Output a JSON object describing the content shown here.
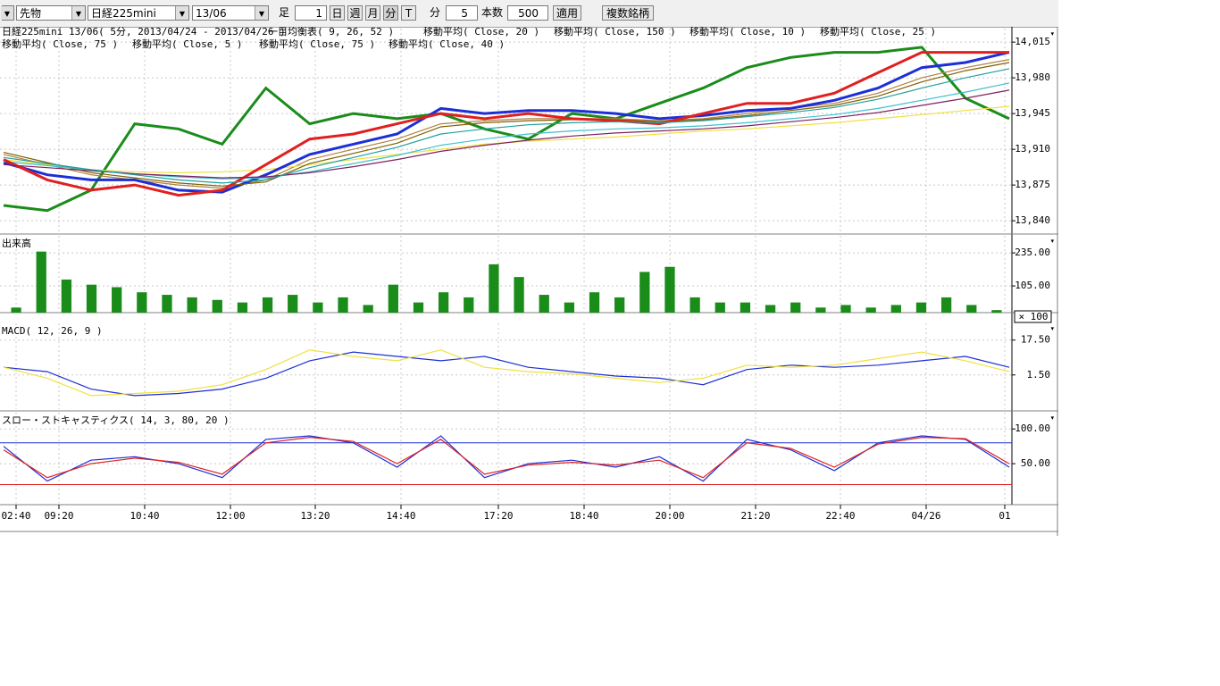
{
  "toolbar": {
    "market": "先物",
    "symbol": "日経225mini",
    "contract": "13/06",
    "bar_label": "足",
    "bar_count": "1",
    "day": "日",
    "week": "週",
    "month": "月",
    "minute": "分",
    "tick": "T",
    "minute_label": "分",
    "interval": "5",
    "count_label": "本数",
    "count": "500",
    "apply": "適用",
    "multi": "複数銘柄"
  },
  "x_axis": {
    "labels": [
      "02:40",
      "09:20",
      "10:40",
      "12:00",
      "13:20",
      "14:40",
      "17:20",
      "18:40",
      "20:00",
      "21:20",
      "22:40",
      "04/26",
      "01"
    ]
  },
  "chart_data": [
    {
      "type": "line",
      "title": "日経225mini 13/06( 5分, 2013/04/24 - 2013/04/26 )",
      "grid": true,
      "ylim": [
        13827,
        14030
      ],
      "yticks": [
        {
          "value": 13840,
          "label": "13,840"
        },
        {
          "value": 13875,
          "label": "13,875"
        },
        {
          "value": 13910,
          "label": "13,910"
        },
        {
          "value": 13945,
          "label": "13,945"
        },
        {
          "value": 13980,
          "label": "13,980"
        },
        {
          "value": 14015,
          "label": "14,015"
        }
      ],
      "series": [
        {
          "name": "一目均衡表( 9, 26, 52 )",
          "color": "#1a8c1a",
          "values": [
            13855,
            13850,
            13870,
            13935,
            13930,
            13915,
            13970,
            13935,
            13945,
            13940,
            13945,
            13930,
            13920,
            13945,
            13940,
            13955,
            13970,
            13990,
            14000,
            14005,
            14005,
            14010,
            13960,
            13940
          ]
        },
        {
          "name": "移動平均( Close, 20 )",
          "color": "#b08040",
          "values": [
            13905,
            13895,
            13885,
            13880,
            13875,
            13872,
            13880,
            13900,
            13910,
            13920,
            13935,
            13938,
            13940,
            13940,
            13940,
            13938,
            13940,
            13945,
            13950,
            13955,
            13965,
            13980,
            13990,
            13998
          ]
        },
        {
          "name": "移動平均( Close, 150 )",
          "color": "#f0e040",
          "values": [
            13900,
            13895,
            13890,
            13888,
            13887,
            13888,
            13890,
            13895,
            13900,
            13905,
            13910,
            13915,
            13918,
            13920,
            13922,
            13925,
            13928,
            13930,
            13933,
            13936,
            13940,
            13944,
            13948,
            13952
          ]
        },
        {
          "name": "移動平均( Close, 10 )",
          "color": "#1c2fd6",
          "values": [
            13897,
            13885,
            13880,
            13880,
            13870,
            13868,
            13885,
            13905,
            13915,
            13925,
            13950,
            13945,
            13948,
            13948,
            13945,
            13940,
            13943,
            13948,
            13950,
            13958,
            13970,
            13990,
            13995,
            14005
          ]
        },
        {
          "name": "移動平均( Close, 25 )",
          "color": "#806000",
          "values": [
            13907,
            13897,
            13887,
            13882,
            13877,
            13874,
            13878,
            13896,
            13906,
            13916,
            13932,
            13936,
            13938,
            13939,
            13939,
            13937,
            13939,
            13943,
            13948,
            13953,
            13962,
            13976,
            13987,
            13995
          ]
        },
        {
          "name": "移動平均( Close, 75 )",
          "color": "#40c0d0",
          "values": [
            13898,
            13894,
            13890,
            13886,
            13883,
            13881,
            13882,
            13888,
            13896,
            13904,
            13914,
            13920,
            13925,
            13928,
            13930,
            13931,
            13933,
            13936,
            13940,
            13944,
            13950,
            13958,
            13966,
            13975
          ]
        },
        {
          "name": "移動平均( Close, 5 )",
          "color": "#e02020",
          "values": [
            13900,
            13880,
            13870,
            13875,
            13865,
            13870,
            13895,
            13920,
            13925,
            13935,
            13945,
            13940,
            13945,
            13940,
            13938,
            13935,
            13945,
            13955,
            13955,
            13965,
            13985,
            14005,
            14005,
            14005
          ]
        },
        {
          "name": "移動平均( Close, 75 )",
          "color": "#802060",
          "values": [
            13895,
            13892,
            13889,
            13886,
            13884,
            13882,
            13883,
            13887,
            13893,
            13900,
            13908,
            13914,
            13919,
            13923,
            13926,
            13928,
            13930,
            13933,
            13937,
            13941,
            13946,
            13953,
            13960,
            13968
          ]
        },
        {
          "name": "移動平均( Close, 40 )",
          "color": "#20a0a0",
          "values": [
            13902,
            13896,
            13890,
            13885,
            13880,
            13877,
            13880,
            13892,
            13902,
            13912,
            13925,
            13930,
            13934,
            13936,
            13937,
            13936,
            13938,
            13942,
            13946,
            13951,
            13959,
            13970,
            13980,
            13989
          ]
        }
      ]
    },
    {
      "type": "bar",
      "title": "出来高",
      "color": "#1a8c1a",
      "annotation": "× 100",
      "ylim": [
        0,
        309
      ],
      "yticks": [
        {
          "value": 105,
          "label": "105.00"
        },
        {
          "value": 235,
          "label": "235.00"
        }
      ],
      "values": [
        20,
        240,
        130,
        110,
        100,
        80,
        70,
        60,
        50,
        40,
        60,
        70,
        40,
        60,
        30,
        110,
        40,
        80,
        60,
        190,
        140,
        70,
        40,
        80,
        60,
        160,
        180,
        60,
        40,
        40,
        30,
        40,
        20,
        30,
        20,
        30,
        40,
        60,
        30,
        10
      ]
    },
    {
      "type": "line",
      "title": "MACD( 12, 26, 9 )",
      "ylim": [
        -15,
        26
      ],
      "yticks": [
        {
          "value": 1.5,
          "label": "1.50"
        },
        {
          "value": 17.5,
          "label": "17.50"
        }
      ],
      "series": [
        {
          "color": "#1c2fd6",
          "values": [
            5,
            3,
            -5,
            -8,
            -7,
            -5,
            0,
            8,
            12,
            10,
            8,
            10,
            5,
            3,
            1,
            0,
            -3,
            4,
            6,
            5,
            6,
            8,
            10,
            5
          ]
        },
        {
          "color": "#f0e040",
          "values": [
            5,
            0,
            -8,
            -7,
            -6,
            -3,
            4,
            13,
            10,
            8,
            13,
            5,
            3,
            2,
            0,
            -2,
            0,
            6,
            5,
            6,
            9,
            12,
            8,
            3
          ]
        }
      ]
    },
    {
      "type": "line",
      "title": "スロー・ストキャスティクス( 14, 3, 80, 20 )",
      "ylim": [
        -9,
        126
      ],
      "yticks": [
        {
          "value": 50,
          "label": "50.00"
        },
        {
          "value": 100,
          "label": "100.00"
        }
      ],
      "reference_lines": [
        {
          "value": 80,
          "color": "#1c2fd6"
        },
        {
          "value": 20,
          "color": "#e02020"
        }
      ],
      "series": [
        {
          "color": "#1c2fd6",
          "values": [
            75,
            25,
            55,
            60,
            50,
            30,
            85,
            90,
            80,
            45,
            90,
            30,
            50,
            55,
            45,
            60,
            25,
            85,
            70,
            40,
            80,
            90,
            85,
            45
          ]
        },
        {
          "color": "#e02020",
          "values": [
            70,
            30,
            50,
            58,
            52,
            35,
            80,
            88,
            82,
            50,
            85,
            35,
            48,
            52,
            48,
            55,
            30,
            80,
            72,
            45,
            78,
            88,
            86,
            50
          ]
        }
      ]
    }
  ]
}
